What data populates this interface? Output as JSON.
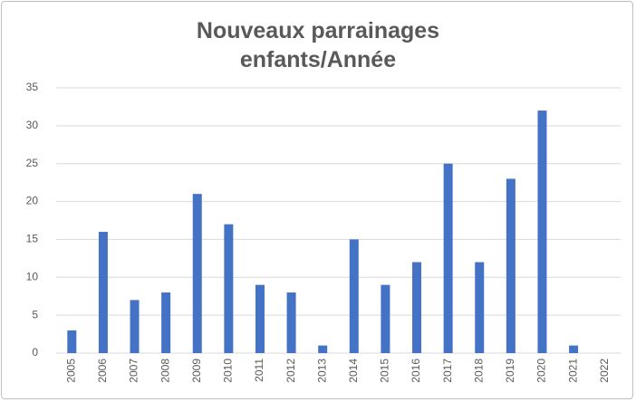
{
  "chart_data": {
    "type": "bar",
    "title": "Nouveaux parrainages enfants/Année",
    "categories": [
      "2005",
      "2006",
      "2007",
      "2008",
      "2009",
      "2010",
      "2011",
      "2012",
      "2013",
      "2014",
      "2015",
      "2016",
      "2017",
      "2018",
      "2019",
      "2020",
      "2021",
      "2022"
    ],
    "values": [
      3,
      16,
      7,
      8,
      21,
      17,
      9,
      8,
      1,
      15,
      9,
      12,
      25,
      12,
      23,
      32,
      1,
      0
    ],
    "color": "#4472c4",
    "ylim": [
      0,
      35
    ],
    "yticks": [
      0,
      5,
      10,
      15,
      20,
      25,
      30,
      35
    ],
    "grid": true
  }
}
